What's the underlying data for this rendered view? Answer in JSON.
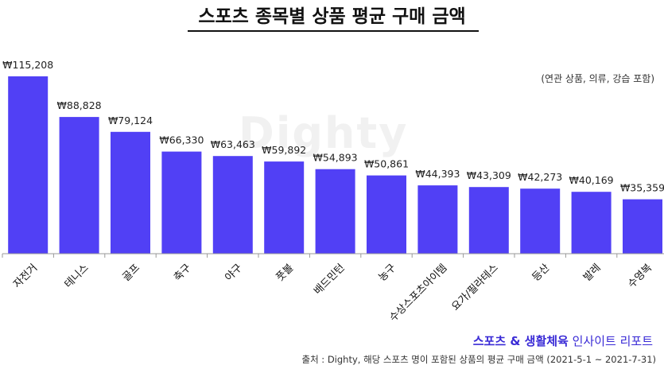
{
  "title": "스포츠 종목별 상품 평균 구매 금액",
  "subtitle": "(연관 상품, 의류, 강습 포함)",
  "watermark": "Dighty",
  "report": {
    "strong": "스포츠 & 생활체육",
    "rest": " 인사이트 리포트"
  },
  "source": "출처 : Dighty, 해당 스포츠 명이 포함된 상품의 평균 구매 금액 (2021-5-1 ~ 2021-7-31)",
  "colors": {
    "bar": "#5140f5",
    "axis": "#999999"
  },
  "chart_data": {
    "type": "bar",
    "title": "스포츠 종목별 상품 평균 구매 금액",
    "categories": [
      "자전거",
      "테니스",
      "골프",
      "축구",
      "야구",
      "풋볼",
      "배드민턴",
      "농구",
      "수상스포츠아이템",
      "요가/필라테스",
      "등산",
      "발레",
      "수영복"
    ],
    "values": [
      115208,
      88828,
      79124,
      66330,
      63463,
      59892,
      54893,
      50861,
      44393,
      43309,
      42273,
      40169,
      35359
    ],
    "labels": [
      "₩115,208",
      "₩88,828",
      "₩79,124",
      "₩66,330",
      "₩63,463",
      "₩59,892",
      "₩54,893",
      "₩50,861",
      "₩44,393",
      "₩43,309",
      "₩42,273",
      "₩40,169",
      "₩35,359"
    ],
    "ylim": [
      0,
      115208
    ],
    "grid": false,
    "legend": "none"
  }
}
